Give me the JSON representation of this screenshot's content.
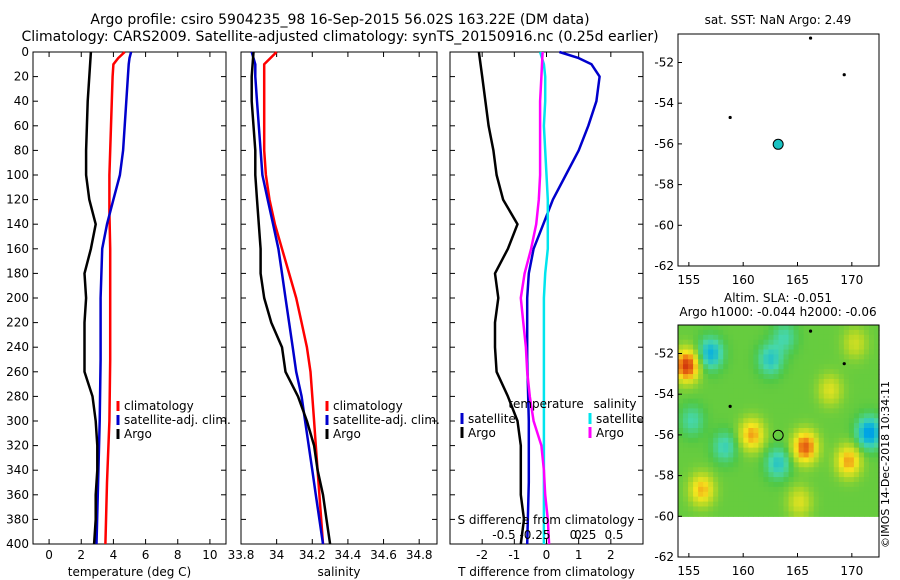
{
  "title": {
    "line1": "Argo profile: csiro 5904235_98 16-Sep-2015 56.02S 163.22E (DM data)",
    "line2": "Climatology: CARS2009. Satellite-adjusted climatology: synTS_20150916.nc (0.25d earlier)"
  },
  "colors": {
    "climatology": "#ff0000",
    "satellite": "#0000cc",
    "argo": "#000000",
    "sat_salinity": "#00e5ee",
    "argo_salinity": "#ff00ff"
  },
  "chart_data": [
    {
      "type": "line",
      "id": "temperature",
      "xlabel": "temperature (deg C)",
      "ylabel": "",
      "xlim": [
        -1,
        11
      ],
      "ylim": [
        400,
        0
      ],
      "xticks": [
        "0",
        "2",
        "4",
        "6",
        "8",
        "10"
      ],
      "yticks": [
        "0",
        "20",
        "40",
        "60",
        "80",
        "100",
        "120",
        "140",
        "160",
        "180",
        "200",
        "220",
        "240",
        "260",
        "280",
        "300",
        "320",
        "340",
        "360",
        "380",
        "400"
      ],
      "legend": [
        "climatology",
        "satellite-adj. clim.",
        "Argo"
      ],
      "series": [
        {
          "name": "climatology",
          "depth": [
            0,
            5,
            10,
            20,
            40,
            60,
            80,
            100,
            130,
            160,
            200,
            250,
            300,
            350,
            400
          ],
          "values": [
            4.7,
            4.3,
            4.0,
            3.95,
            3.9,
            3.85,
            3.8,
            3.75,
            3.75,
            3.8,
            3.8,
            3.8,
            3.75,
            3.6,
            3.5
          ]
        },
        {
          "name": "satellite-adj. clim.",
          "depth": [
            0,
            5,
            10,
            20,
            40,
            60,
            80,
            100,
            120,
            140,
            160,
            200,
            250,
            300,
            350,
            400
          ],
          "values": [
            5.1,
            5.0,
            4.95,
            4.9,
            4.8,
            4.7,
            4.6,
            4.4,
            4.0,
            3.6,
            3.3,
            3.2,
            3.2,
            3.15,
            3.05,
            2.95
          ]
        },
        {
          "name": "Argo",
          "depth": [
            0,
            20,
            40,
            60,
            80,
            100,
            120,
            140,
            160,
            180,
            200,
            220,
            240,
            260,
            280,
            300,
            320,
            340,
            360,
            380,
            400
          ],
          "values": [
            2.6,
            2.5,
            2.4,
            2.35,
            2.3,
            2.3,
            2.5,
            2.9,
            2.6,
            2.2,
            2.3,
            2.2,
            2.2,
            2.2,
            2.7,
            2.9,
            3.0,
            3.0,
            2.9,
            2.9,
            2.8
          ]
        }
      ]
    },
    {
      "type": "line",
      "id": "salinity",
      "xlabel": "salinity",
      "ylabel": "",
      "xlim": [
        33.8,
        34.9
      ],
      "ylim": [
        400,
        0
      ],
      "xticks": [
        "33.8",
        "34",
        "34.2",
        "34.4",
        "34.6",
        "34.8"
      ],
      "legend": [
        "climatology",
        "satellite-adj. clim.",
        "Argo"
      ],
      "series": [
        {
          "name": "climatology",
          "depth": [
            0,
            10,
            20,
            40,
            60,
            80,
            100,
            120,
            140,
            160,
            180,
            200,
            220,
            240,
            260,
            280,
            300,
            320,
            340,
            360,
            380,
            400
          ],
          "values": [
            34.0,
            33.93,
            33.93,
            33.93,
            33.93,
            33.93,
            33.94,
            33.96,
            33.99,
            34.03,
            34.07,
            34.11,
            34.14,
            34.17,
            34.19,
            34.2,
            34.21,
            34.22,
            34.23,
            34.24,
            34.25,
            34.26
          ]
        },
        {
          "name": "satellite-adj. clim.",
          "depth": [
            0,
            10,
            20,
            40,
            60,
            80,
            100,
            120,
            140,
            160,
            180,
            200,
            220,
            240,
            260,
            280,
            300,
            320,
            340,
            360,
            380,
            400
          ],
          "values": [
            33.86,
            33.88,
            33.88,
            33.89,
            33.9,
            33.91,
            33.92,
            33.95,
            33.98,
            34.01,
            34.03,
            34.05,
            34.07,
            34.09,
            34.11,
            34.14,
            34.16,
            34.18,
            34.2,
            34.22,
            34.24,
            34.26
          ]
        },
        {
          "name": "Argo",
          "depth": [
            0,
            20,
            40,
            60,
            80,
            100,
            120,
            140,
            160,
            180,
            200,
            220,
            240,
            260,
            280,
            300,
            320,
            340,
            360,
            380,
            400
          ],
          "values": [
            33.87,
            33.86,
            33.86,
            33.87,
            33.88,
            33.88,
            33.89,
            33.9,
            33.91,
            33.91,
            33.93,
            33.97,
            34.03,
            34.05,
            34.12,
            34.17,
            34.21,
            34.23,
            34.26,
            34.28,
            34.3
          ]
        }
      ]
    },
    {
      "type": "line",
      "id": "difference",
      "xlabel": "T difference from climatology",
      "top_label": "S difference from climatology",
      "xlim": [
        -3,
        3
      ],
      "ylim": [
        400,
        0
      ],
      "xticks": [
        "-2",
        "-1",
        "0",
        "1",
        "2"
      ],
      "top_ticks": [
        "-0.5",
        "-0.25",
        "0",
        "0.25",
        "0.5"
      ],
      "legend_temperature_title": "temperature",
      "legend_salinity_title": "salinity",
      "legend": [
        "satellite",
        "Argo",
        "satellite",
        "Argo"
      ],
      "series": [
        {
          "name": "temperature satellite",
          "depth": [
            0,
            5,
            10,
            20,
            40,
            60,
            80,
            100,
            120,
            140,
            160,
            180,
            200,
            250,
            300,
            350,
            400
          ],
          "values": [
            0.4,
            1.0,
            1.4,
            1.65,
            1.55,
            1.3,
            1.0,
            0.6,
            0.2,
            -0.1,
            -0.4,
            -0.55,
            -0.6,
            -0.6,
            -0.55,
            -0.55,
            -0.6
          ]
        },
        {
          "name": "temperature Argo",
          "depth": [
            0,
            20,
            40,
            60,
            80,
            100,
            120,
            140,
            160,
            180,
            200,
            220,
            240,
            260,
            280,
            300,
            320,
            340,
            360,
            380,
            400
          ],
          "values": [
            -2.1,
            -2.0,
            -1.9,
            -1.8,
            -1.65,
            -1.55,
            -1.35,
            -0.9,
            -1.2,
            -1.6,
            -1.5,
            -1.6,
            -1.6,
            -1.55,
            -1.2,
            -0.9,
            -0.8,
            -0.8,
            -0.8,
            -0.7,
            -0.8
          ]
        },
        {
          "name": "salinity satellite",
          "depth": [
            0,
            10,
            20,
            40,
            60,
            80,
            100,
            120,
            140,
            160,
            180,
            200,
            250,
            300,
            350,
            400
          ],
          "values": [
            -0.05,
            -0.02,
            -0.01,
            -0.01,
            -0.02,
            -0.01,
            0.0,
            0.01,
            0.01,
            0.01,
            -0.01,
            -0.02,
            -0.02,
            -0.02,
            -0.02,
            -0.02
          ]
        },
        {
          "name": "salinity Argo",
          "depth": [
            0,
            20,
            40,
            60,
            80,
            100,
            120,
            140,
            160,
            180,
            200,
            220,
            240,
            260,
            280,
            300,
            320,
            340,
            360,
            380,
            400
          ],
          "values": [
            -0.03,
            -0.04,
            -0.05,
            -0.05,
            -0.05,
            -0.05,
            -0.06,
            -0.08,
            -0.12,
            -0.17,
            -0.2,
            -0.18,
            -0.16,
            -0.15,
            -0.13,
            -0.1,
            -0.04,
            -0.02,
            -0.01,
            0.01,
            0.02
          ]
        }
      ]
    },
    {
      "type": "scatter",
      "id": "sst_map",
      "title": "sat. SST: NaN Argo: 2.49",
      "xlim": [
        154,
        172.5
      ],
      "ylim": [
        -62,
        -50.6
      ],
      "xticks": [
        "155",
        "160",
        "165",
        "170"
      ],
      "yticks": [
        "-52",
        "-54",
        "-56",
        "-58",
        "-60",
        "-62"
      ],
      "profile_location": {
        "lon": 163.22,
        "lat": -56.02
      },
      "other_profiles": [
        {
          "lon": 166.2,
          "lat": -50.8
        },
        {
          "lon": 169.3,
          "lat": -52.6
        },
        {
          "lon": 158.8,
          "lat": -54.7
        }
      ]
    },
    {
      "type": "heatmap",
      "id": "sla_map",
      "title_line1": "Altim. SLA: -0.051",
      "title_line2": "Argo h1000: -0.044 h2000: -0.06",
      "xlim": [
        154,
        172.5
      ],
      "ylim": [
        -62,
        -50.6
      ],
      "xticks": [
        "155",
        "160",
        "165",
        "170"
      ],
      "yticks": [
        "-52",
        "-54",
        "-56",
        "-58",
        "-60",
        "-62"
      ],
      "profile_location": {
        "lon": 163.22,
        "lat": -56.02
      },
      "other_profiles": [
        {
          "lon": 166.2,
          "lat": -50.9
        },
        {
          "lon": 169.3,
          "lat": -52.5
        },
        {
          "lon": 158.8,
          "lat": -54.6
        }
      ],
      "blobs": [
        {
          "lon": 154.8,
          "lat": -52.6,
          "v": 0.35
        },
        {
          "lon": 157.0,
          "lat": -52.0,
          "v": -0.2
        },
        {
          "lon": 162.5,
          "lat": -52.3,
          "v": -0.15
        },
        {
          "lon": 163.8,
          "lat": -51.2,
          "v": -0.1
        },
        {
          "lon": 160.8,
          "lat": -56.0,
          "v": 0.22
        },
        {
          "lon": 165.7,
          "lat": -56.6,
          "v": 0.3
        },
        {
          "lon": 163.2,
          "lat": -57.4,
          "v": -0.15
        },
        {
          "lon": 169.7,
          "lat": -57.3,
          "v": 0.22
        },
        {
          "lon": 171.6,
          "lat": -55.9,
          "v": -0.25
        },
        {
          "lon": 156.2,
          "lat": -58.7,
          "v": 0.2
        },
        {
          "lon": 158.3,
          "lat": -56.6,
          "v": -0.12
        },
        {
          "lon": 168.0,
          "lat": -53.8,
          "v": 0.12
        },
        {
          "lon": 155.3,
          "lat": -55.3,
          "v": -0.1
        },
        {
          "lon": 165.2,
          "lat": -59.3,
          "v": 0.12
        },
        {
          "lon": 170.3,
          "lat": -51.5,
          "v": 0.1
        }
      ]
    }
  ],
  "stamp": "©IMOS 14-Dec-2018 10:34:11"
}
